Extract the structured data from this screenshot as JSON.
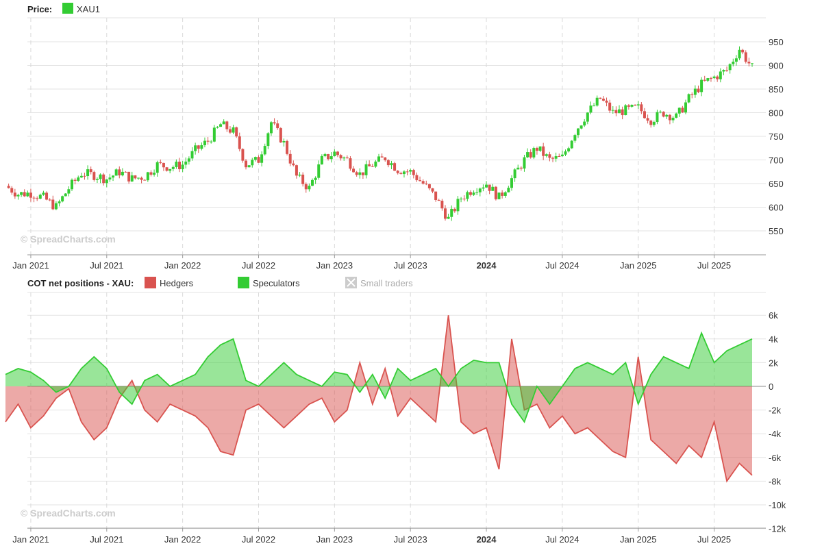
{
  "months": [
    "Nov 2020",
    "Dec 2020",
    "Jan 2021",
    "Feb 2021",
    "Mar 2021",
    "Apr 2021",
    "May 2021",
    "Jun 2021",
    "Jul 2021",
    "Aug 2021",
    "Sep 2021",
    "Oct 2021",
    "Nov 2021",
    "Dec 2021",
    "Jan 2022",
    "Feb 2022",
    "Mar 2022",
    "Apr 2022",
    "May 2022",
    "Jun 2022",
    "Jul 2022",
    "Aug 2022",
    "Sep 2022",
    "Oct 2022",
    "Nov 2022",
    "Dec 2022",
    "Jan 2023",
    "Feb 2023",
    "Mar 2023",
    "Apr 2023",
    "May 2023",
    "Jun 2023",
    "Jul 2023",
    "Aug 2023",
    "Sep 2023",
    "Oct 2023",
    "Nov 2023",
    "Dec 2023",
    "Jan 2024",
    "Feb 2024",
    "Mar 2024",
    "Apr 2024",
    "May 2024",
    "Jun 2024",
    "Jul 2024",
    "Aug 2024",
    "Sep 2024",
    "Oct 2024",
    "Nov 2024",
    "Dec 2024",
    "Jan 2025",
    "Feb 2025",
    "Mar 2025",
    "Apr 2025",
    "May 2025",
    "Jun 2025",
    "Jul 2025",
    "Aug 2025",
    "Sep 2025",
    "Oct 2025"
  ],
  "chart_data": [
    {
      "type": "candlestick",
      "legend_title": "Price:",
      "series": [
        {
          "name": "XAU1",
          "color": "#33cc33"
        }
      ],
      "ylim": [
        520,
        960
      ],
      "y_ticks": [
        550,
        600,
        650,
        700,
        750,
        800,
        850,
        900,
        950
      ],
      "x_ticks": [
        "Jan 2021",
        "Jul 2021",
        "Jan 2022",
        "Jul 2022",
        "Jan 2023",
        "Jul 2023",
        "2024",
        "Jul 2024",
        "Jan 2025",
        "Jul 2025"
      ],
      "bold_x_ticks": [
        "2024"
      ],
      "watermark": "© SpreadCharts.com",
      "up_color": "#33cc33",
      "down_color": "#d9534f",
      "close_by_month": [
        645,
        628,
        630,
        620,
        600,
        640,
        672,
        668,
        660,
        675,
        660,
        665,
        690,
        685,
        690,
        720,
        740,
        775,
        760,
        690,
        700,
        780,
        735,
        665,
        640,
        700,
        715,
        700,
        670,
        690,
        705,
        680,
        675,
        650,
        620,
        575,
        620,
        640,
        650,
        620,
        660,
        700,
        725,
        700,
        705,
        760,
        800,
        830,
        800,
        805,
        810,
        785,
        800,
        790,
        830,
        860,
        875,
        890,
        935,
        895
      ]
    },
    {
      "type": "area",
      "legend_title": "COT net positions - XAU:",
      "series": [
        {
          "name": "Hedgers",
          "color": "#d9534f",
          "enabled": true,
          "values": [
            -3000,
            -1500,
            -3500,
            -2500,
            -1000,
            -200,
            -3000,
            -4500,
            -3500,
            -1000,
            500,
            -2000,
            -3000,
            -1500,
            -2000,
            -2500,
            -3500,
            -5500,
            -5800,
            -2000,
            -1500,
            -2500,
            -3500,
            -2500,
            -1500,
            -1000,
            -3000,
            -2000,
            2000,
            -1500,
            1500,
            -2500,
            -1000,
            -2000,
            -3000,
            6000,
            -3000,
            -4000,
            -3500,
            -7000,
            4000,
            -2000,
            -1500,
            -3500,
            -2500,
            -4000,
            -3500,
            -4500,
            -5500,
            -6000,
            2500,
            -4500,
            -5500,
            -6500,
            -5000,
            -6000,
            -3000,
            -8000,
            -6500,
            -7500
          ]
        },
        {
          "name": "Speculators",
          "color": "#33cc33",
          "enabled": true,
          "values": [
            1000,
            1500,
            1200,
            500,
            -500,
            0,
            1500,
            2500,
            1500,
            -500,
            -1500,
            500,
            1000,
            0,
            500,
            1000,
            2500,
            3500,
            4000,
            500,
            0,
            1000,
            2000,
            1000,
            500,
            0,
            1200,
            1000,
            -500,
            1000,
            -1000,
            1500,
            500,
            1000,
            1500,
            0,
            1500,
            2200,
            2000,
            2000,
            -1500,
            -3000,
            0,
            -1500,
            0,
            1500,
            2000,
            1500,
            1000,
            2000,
            -1500,
            1000,
            2500,
            2000,
            1500,
            4500,
            2000,
            3000,
            3500,
            4000
          ]
        },
        {
          "name": "Small traders",
          "enabled": false
        }
      ],
      "ylim": [
        -12000,
        7000
      ],
      "y_ticks": [
        6000,
        4000,
        2000,
        0,
        -2000,
        -4000,
        -6000,
        -8000,
        -10000,
        -12000
      ],
      "y_tick_labels": [
        "6k",
        "4k",
        "2k",
        "0",
        "-2k",
        "-4k",
        "-6k",
        "-8k",
        "-10k",
        "-12k"
      ],
      "x_ticks": [
        "Jan 2021",
        "Jul 2021",
        "Jan 2022",
        "Jul 2022",
        "Jan 2023",
        "Jul 2023",
        "2024",
        "Jul 2024",
        "Jan 2025",
        "Jul 2025"
      ],
      "bold_x_ticks": [
        "2024"
      ],
      "watermark": "© SpreadCharts.com",
      "grid": true,
      "legend_placement": "top-left"
    }
  ]
}
